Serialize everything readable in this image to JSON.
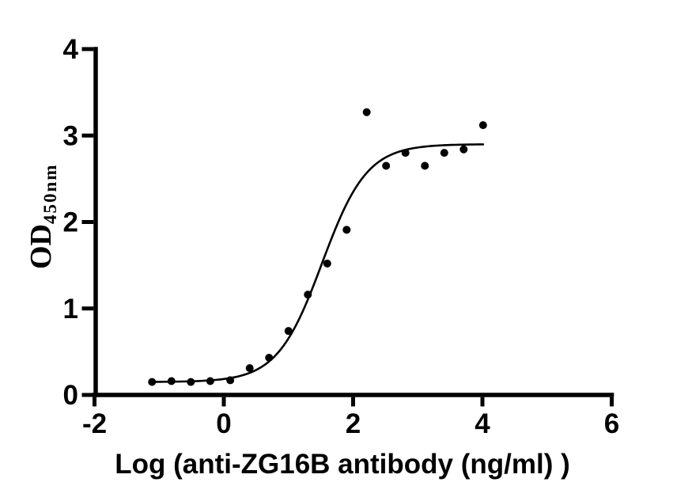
{
  "figure": {
    "background": "#ffffff",
    "foreground": "#000000"
  },
  "chart_data": {
    "type": "scatter",
    "subtype": "ELISA-binding-curve-with-sigmoidal-fit",
    "title": "",
    "xlabel": "Log（anti-ZG16B antibody（ng/ml） ）",
    "ylabel_main": "OD",
    "ylabel_subscript": "450nm",
    "xlim": [
      -2,
      6
    ],
    "ylim": [
      0,
      4
    ],
    "x_ticks": [
      -2,
      0,
      2,
      4,
      6
    ],
    "y_ticks": [
      0,
      1,
      2,
      3,
      4
    ],
    "grid": false,
    "legend_position": "none",
    "axis_color": "#000000",
    "marker_color": "#000000",
    "line_color": "#000000",
    "points": [
      {
        "x": -1.11,
        "y": 0.15
      },
      {
        "x": -0.81,
        "y": 0.16
      },
      {
        "x": -0.51,
        "y": 0.15
      },
      {
        "x": -0.21,
        "y": 0.16
      },
      {
        "x": 0.1,
        "y": 0.17
      },
      {
        "x": 0.4,
        "y": 0.31
      },
      {
        "x": 0.7,
        "y": 0.43
      },
      {
        "x": 1.0,
        "y": 0.74
      },
      {
        "x": 1.3,
        "y": 1.16
      },
      {
        "x": 1.6,
        "y": 1.52
      },
      {
        "x": 1.9,
        "y": 1.91
      },
      {
        "x": 2.21,
        "y": 3.27
      },
      {
        "x": 2.51,
        "y": 2.65
      },
      {
        "x": 2.81,
        "y": 2.8
      },
      {
        "x": 3.11,
        "y": 2.65
      },
      {
        "x": 3.41,
        "y": 2.8
      },
      {
        "x": 3.71,
        "y": 2.84
      },
      {
        "x": 4.01,
        "y": 3.12
      }
    ],
    "fit_curve": {
      "model": "sigmoidal-4PL",
      "bottom": 0.15,
      "top": 2.9,
      "log_ec50": 1.52,
      "hill_slope": 1.25,
      "x_start": -1.11,
      "x_end": 4.03
    }
  }
}
